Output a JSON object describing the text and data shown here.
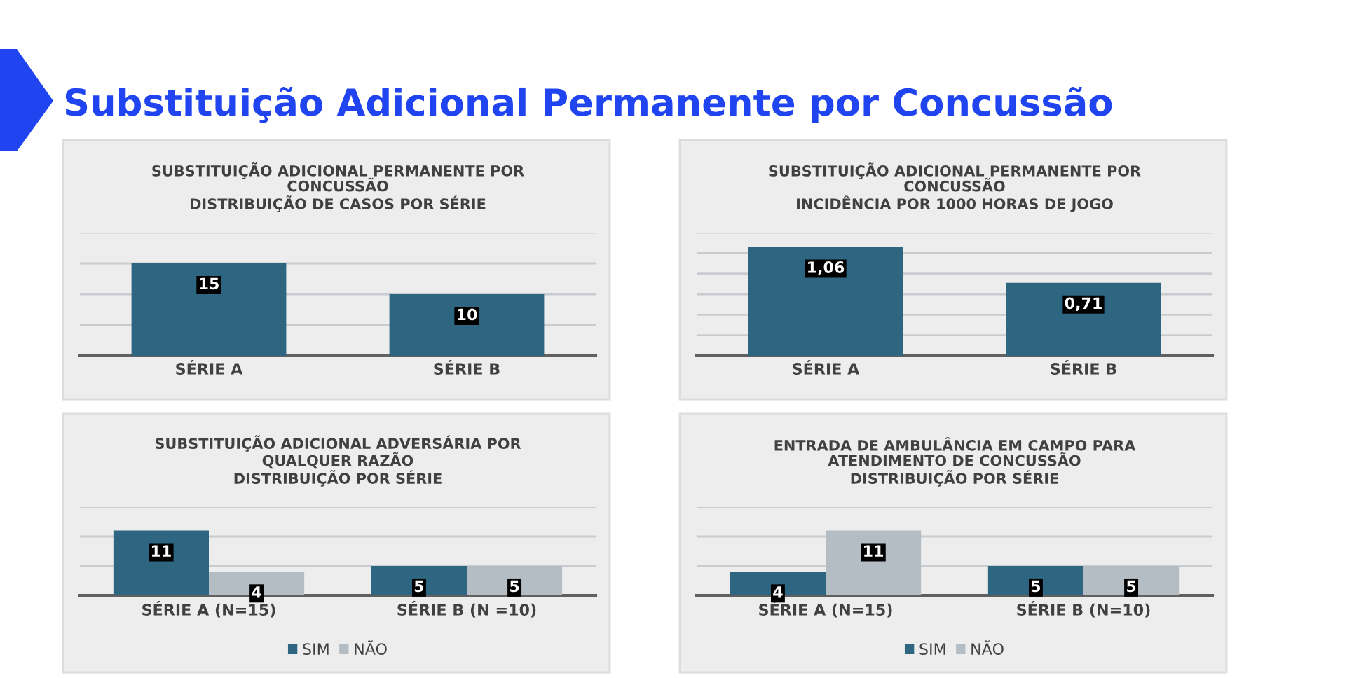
{
  "chart_data": [
    {
      "type": "other",
      "title": "Substituição Adicional Permanente por Concussão"
    },
    {
      "type": "bar",
      "title": "SUBSTITUIÇÃO ADICIONAL PERMANENTE POR\nCONCUSSÃO\nDISTRIBUIÇÃO DE CASOS POR SÉRIE",
      "categories": [
        "SÉRIE A",
        "SÉRIE B"
      ],
      "values": [
        15,
        10
      ],
      "value_labels": [
        "15",
        "10"
      ],
      "color": "#2e6681",
      "ylim": [
        0,
        20
      ],
      "yticks": [
        {
          "value": 0,
          "label": null
        },
        {
          "value": 5,
          "label": null
        },
        {
          "value": 10,
          "label": null
        },
        {
          "value": 15,
          "label": null
        },
        {
          "value": 20,
          "label": null
        }
      ],
      "grid": "y",
      "tick_labels": "x",
      "legend": false
    },
    {
      "type": "bar",
      "title": "SUBSTITUIÇÃO ADICIONAL PERMANENTE POR\nCONCUSSÃO\nINCIDÊNCIA POR 1000 HORAS DE JOGO",
      "categories": [
        "SÉRIE A",
        "SÉRIE B"
      ],
      "values": [
        1.06,
        0.71
      ],
      "value_labels": [
        "1,06",
        "0,71"
      ],
      "color": "#2e6681",
      "ylim": [
        0,
        1.2
      ],
      "yticks": [
        {
          "value": 0,
          "label": null
        },
        {
          "value": 0.2,
          "label": null
        },
        {
          "value": 0.4,
          "label": null
        },
        {
          "value": 0.6,
          "label": null
        },
        {
          "value": 0.8,
          "label": null
        },
        {
          "value": 1.0,
          "label": null
        },
        {
          "value": 1.2,
          "label": null
        }
      ],
      "grid": "y",
      "tick_labels": "x",
      "legend": false
    },
    {
      "type": "bar",
      "title": "SUBSTITUIÇÃO ADICIONAL ADVERSÁRIA POR\nQUALQUER RAZÃO\nDISTRIBUIÇÃO POR SÉRIE",
      "categories": [
        "SÉRIE A (N=15)",
        "SÉRIE B (N =10)"
      ],
      "series": [
        {
          "name": "SIM",
          "color": "#2e6681",
          "values": [
            11,
            5
          ],
          "value_labels": [
            "11",
            "5"
          ]
        },
        {
          "name": "NÃO",
          "color": "#b4bcc4",
          "values": [
            4,
            5
          ],
          "value_labels": [
            "4",
            "5"
          ]
        }
      ],
      "ylim": [
        0,
        15
      ],
      "yticks": [
        {
          "value": 0,
          "label": null
        },
        {
          "value": 5,
          "label": null
        },
        {
          "value": 10,
          "label": null
        },
        {
          "value": 15,
          "label": null
        }
      ],
      "grid": "y",
      "tick_labels": "x",
      "legend": "bottom"
    },
    {
      "type": "bar",
      "title": "ENTRADA DE AMBULÂNCIA EM CAMPO PARA\nATENDIMENTO DE CONCUSSÃO\nDISTRIBUIÇÃO POR SÉRIE",
      "categories": [
        "SÉRIE A (N=15)",
        "SÉRIE B (N=10)"
      ],
      "series": [
        {
          "name": "SIM",
          "color": "#2e6681",
          "values": [
            4,
            5
          ],
          "value_labels": [
            "4",
            "5"
          ]
        },
        {
          "name": "NÃO",
          "color": "#b4bcc4",
          "values": [
            11,
            5
          ],
          "value_labels": [
            "11",
            "5"
          ]
        }
      ],
      "ylim": [
        0,
        15
      ],
      "yticks": [
        {
          "value": 0,
          "label": null
        },
        {
          "value": 5,
          "label": null
        },
        {
          "value": 10,
          "label": null
        },
        {
          "value": 15,
          "label": null
        }
      ],
      "grid": "y",
      "tick_labels": "x",
      "legend": "bottom"
    }
  ]
}
